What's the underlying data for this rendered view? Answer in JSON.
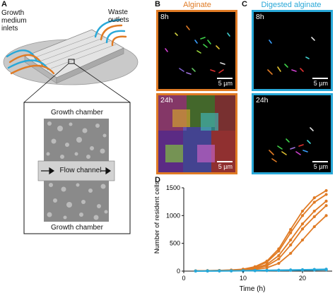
{
  "panels": {
    "A": {
      "label": "A",
      "inlets_text": [
        "Growth",
        "medium",
        "inlets"
      ],
      "outlets_text": [
        "Waste",
        "outlets"
      ],
      "top_chamber": "Growth chamber",
      "channel": "Flow channel",
      "bottom_chamber": "Growth chamber"
    },
    "B": {
      "label": "B",
      "title": "Alginate",
      "frames": [
        {
          "time": "8h",
          "scale": "5 µm"
        },
        {
          "time": "24h",
          "scale": "5 µm"
        }
      ]
    },
    "C": {
      "label": "C",
      "title": "Digested alginate",
      "frames": [
        {
          "time": "8h",
          "scale": "5 µm"
        },
        {
          "time": "24h",
          "scale": "5 µm"
        }
      ]
    },
    "D": {
      "label": "D"
    }
  },
  "colors": {
    "alginate": "#e07b25",
    "digested": "#28a8d8"
  },
  "chart_data": {
    "type": "line",
    "xlabel": "Time (h)",
    "ylabel": "Number of resident cells",
    "xlim": [
      0,
      25
    ],
    "ylim": [
      0,
      1500
    ],
    "xticks": [
      0,
      10,
      20
    ],
    "yticks": [
      0,
      500,
      1000,
      1500
    ],
    "x": [
      2,
      4,
      6,
      8,
      10,
      12,
      14,
      16,
      18,
      20,
      22,
      24
    ],
    "series": [
      {
        "color": "#e07b25",
        "values": [
          5,
          8,
          12,
          20,
          35,
          80,
          180,
          400,
          750,
          1080,
          1320,
          1450
        ]
      },
      {
        "color": "#e07b25",
        "values": [
          5,
          8,
          12,
          18,
          30,
          70,
          160,
          360,
          690,
          1000,
          1240,
          1380
        ]
      },
      {
        "color": "#e07b25",
        "values": [
          4,
          7,
          10,
          15,
          25,
          55,
          120,
          280,
          560,
          850,
          1080,
          1260
        ]
      },
      {
        "color": "#e07b25",
        "values": [
          4,
          6,
          9,
          13,
          20,
          45,
          95,
          220,
          470,
          760,
          980,
          1180
        ]
      },
      {
        "color": "#e07b25",
        "values": [
          3,
          5,
          7,
          10,
          15,
          30,
          60,
          140,
          320,
          560,
          800,
          1000
        ]
      },
      {
        "color": "#28a8d8",
        "values": [
          2,
          3,
          4,
          5,
          8,
          12,
          15,
          18,
          22,
          25,
          30,
          35
        ]
      },
      {
        "color": "#28a8d8",
        "values": [
          2,
          3,
          4,
          5,
          7,
          10,
          13,
          16,
          19,
          22,
          26,
          30
        ]
      },
      {
        "color": "#28a8d8",
        "values": [
          1,
          2,
          3,
          4,
          6,
          9,
          12,
          14,
          17,
          20,
          23,
          27
        ]
      },
      {
        "color": "#28a8d8",
        "values": [
          1,
          2,
          3,
          4,
          5,
          8,
          10,
          12,
          15,
          18,
          20,
          24
        ]
      }
    ]
  }
}
